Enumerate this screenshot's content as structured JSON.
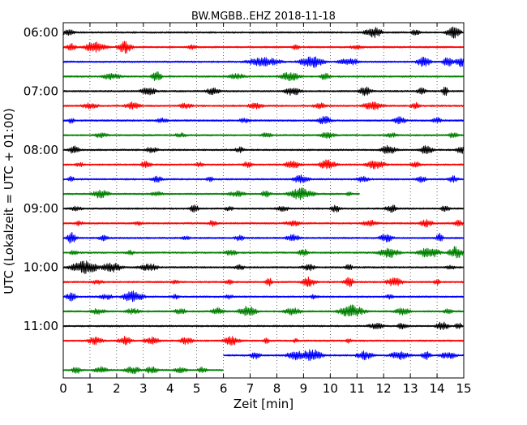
{
  "chart_data": {
    "type": "line",
    "title": "BW.MGBB..EHZ 2018-11-18",
    "xlabel": "Zeit  [min]",
    "ylabel": "UTC (Lokalzeit = UTC + 01:00)",
    "xlim": [
      0,
      15
    ],
    "x_ticks": [
      "0",
      "1",
      "2",
      "3",
      "4",
      "5",
      "6",
      "7",
      "8",
      "9",
      "10",
      "11",
      "12",
      "13",
      "14",
      "15"
    ],
    "y_ticks": [
      {
        "label": "06:00",
        "row": 0
      },
      {
        "label": "07:00",
        "row": 4
      },
      {
        "label": "08:00",
        "row": 8
      },
      {
        "label": "09:00",
        "row": 12
      },
      {
        "label": "10:00",
        "row": 16
      },
      {
        "label": "11:00",
        "row": 20
      }
    ],
    "grid": "vertical-dotted",
    "row_interval_minutes": 15,
    "row_colors": [
      "#000000",
      "#ff0000",
      "#0000ff",
      "#008000"
    ],
    "rows": [
      {
        "trace_start": 0,
        "trace_end": 15,
        "bursts": [
          [
            0.2,
            0.4,
            0.5
          ],
          [
            11.6,
            0.5,
            0.9
          ],
          [
            13.2,
            0.3,
            0.5
          ],
          [
            14.6,
            0.4,
            1.0
          ]
        ]
      },
      {
        "trace_start": 0,
        "trace_end": 15,
        "bursts": [
          [
            0.3,
            0.3,
            0.6
          ],
          [
            1.2,
            0.6,
            0.9
          ],
          [
            2.3,
            0.4,
            1.0
          ],
          [
            4.8,
            0.3,
            0.4
          ],
          [
            8.7,
            0.3,
            0.4
          ],
          [
            11.0,
            0.4,
            0.4
          ]
        ]
      },
      {
        "trace_start": 0,
        "trace_end": 15,
        "bursts": [
          [
            7.5,
            1.0,
            0.7
          ],
          [
            9.3,
            0.7,
            1.0
          ],
          [
            10.7,
            0.6,
            0.6
          ],
          [
            13.5,
            0.4,
            0.8
          ],
          [
            14.4,
            0.3,
            0.8
          ],
          [
            15.0,
            0.5,
            0.9
          ]
        ]
      },
      {
        "trace_start": 0,
        "trace_end": 15,
        "bursts": [
          [
            1.8,
            0.6,
            0.5
          ],
          [
            3.5,
            0.3,
            0.8
          ],
          [
            6.5,
            0.5,
            0.5
          ],
          [
            8.5,
            0.6,
            0.7
          ],
          [
            9.8,
            0.3,
            0.6
          ]
        ]
      },
      {
        "trace_start": 0,
        "trace_end": 15,
        "bursts": [
          [
            3.2,
            0.5,
            0.6
          ],
          [
            5.6,
            0.4,
            0.6
          ],
          [
            8.6,
            0.5,
            0.7
          ],
          [
            11.3,
            0.4,
            0.7
          ],
          [
            13.4,
            0.3,
            0.6
          ],
          [
            14.3,
            0.2,
            0.8
          ]
        ]
      },
      {
        "trace_start": 0,
        "trace_end": 15,
        "bursts": [
          [
            1.0,
            0.5,
            0.5
          ],
          [
            2.6,
            0.5,
            0.6
          ],
          [
            4.6,
            0.4,
            0.5
          ],
          [
            7.2,
            0.5,
            0.5
          ],
          [
            9.6,
            0.4,
            0.5
          ],
          [
            11.6,
            0.6,
            0.7
          ],
          [
            13.2,
            0.3,
            0.6
          ]
        ]
      },
      {
        "trace_start": 0,
        "trace_end": 15,
        "bursts": [
          [
            0.3,
            0.2,
            0.5
          ],
          [
            3.7,
            0.4,
            0.4
          ],
          [
            6.8,
            0.4,
            0.4
          ],
          [
            9.8,
            0.4,
            0.7
          ],
          [
            12.6,
            0.4,
            0.6
          ],
          [
            14.0,
            0.3,
            0.5
          ]
        ]
      },
      {
        "trace_start": 0,
        "trace_end": 15,
        "bursts": [
          [
            1.4,
            0.5,
            0.4
          ],
          [
            4.4,
            0.4,
            0.4
          ],
          [
            7.6,
            0.4,
            0.4
          ],
          [
            9.9,
            0.5,
            0.5
          ],
          [
            12.3,
            0.4,
            0.4
          ],
          [
            14.6,
            0.3,
            0.5
          ]
        ]
      },
      {
        "trace_start": 0,
        "trace_end": 15,
        "bursts": [
          [
            0.4,
            0.3,
            0.8
          ],
          [
            3.3,
            0.4,
            0.5
          ],
          [
            6.6,
            0.3,
            0.5
          ],
          [
            12.2,
            0.5,
            0.7
          ],
          [
            13.6,
            0.4,
            0.7
          ],
          [
            14.9,
            0.3,
            0.6
          ]
        ]
      },
      {
        "trace_start": 0,
        "trace_end": 15,
        "bursts": [
          [
            0.6,
            0.3,
            0.4
          ],
          [
            3.1,
            0.3,
            0.7
          ],
          [
            5.1,
            0.3,
            0.4
          ],
          [
            6.9,
            0.3,
            0.5
          ],
          [
            8.6,
            0.5,
            0.6
          ],
          [
            9.9,
            0.5,
            0.8
          ],
          [
            11.7,
            0.6,
            0.7
          ],
          [
            13.2,
            0.3,
            0.5
          ]
        ]
      },
      {
        "trace_start": 0,
        "trace_end": 15,
        "bursts": [
          [
            0.3,
            0.2,
            0.5
          ],
          [
            3.5,
            0.4,
            0.5
          ],
          [
            5.5,
            0.3,
            0.4
          ],
          [
            8.9,
            0.5,
            0.7
          ],
          [
            11.2,
            0.4,
            0.5
          ],
          [
            13.4,
            0.3,
            0.6
          ],
          [
            14.6,
            0.3,
            0.6
          ]
        ]
      },
      {
        "trace_start": 0,
        "trace_end": 11.1,
        "bursts": [
          [
            1.4,
            0.5,
            0.7
          ],
          [
            3.5,
            0.4,
            0.4
          ],
          [
            6.5,
            0.5,
            0.5
          ],
          [
            7.6,
            0.3,
            0.6
          ],
          [
            8.9,
            0.7,
            1.0
          ],
          [
            10.7,
            0.2,
            0.4
          ]
        ]
      },
      {
        "trace_start": 0,
        "trace_end": 15,
        "bursts": [
          [
            0.5,
            0.4,
            0.4
          ],
          [
            4.9,
            0.3,
            0.6
          ],
          [
            6.2,
            0.3,
            0.4
          ],
          [
            8.2,
            0.4,
            0.5
          ],
          [
            10.2,
            0.3,
            0.6
          ],
          [
            12.3,
            0.4,
            0.6
          ],
          [
            14.3,
            0.3,
            0.5
          ]
        ]
      },
      {
        "trace_start": 0,
        "trace_end": 15,
        "bursts": [
          [
            0.6,
            0.3,
            0.4
          ],
          [
            2.8,
            0.3,
            0.4
          ],
          [
            5.6,
            0.3,
            0.5
          ],
          [
            8.6,
            0.5,
            0.5
          ],
          [
            11.5,
            0.5,
            0.5
          ],
          [
            13.6,
            0.4,
            0.6
          ],
          [
            14.8,
            0.3,
            0.5
          ]
        ]
      },
      {
        "trace_start": 0,
        "trace_end": 15,
        "bursts": [
          [
            0.3,
            0.3,
            0.9
          ],
          [
            1.5,
            0.3,
            0.5
          ],
          [
            4.6,
            0.3,
            0.4
          ],
          [
            6.6,
            0.3,
            0.5
          ],
          [
            8.6,
            0.4,
            0.6
          ],
          [
            12.1,
            0.4,
            0.7
          ],
          [
            14.1,
            0.2,
            0.8
          ]
        ]
      },
      {
        "trace_start": 0,
        "trace_end": 15,
        "bursts": [
          [
            0.4,
            0.3,
            0.4
          ],
          [
            2.5,
            0.3,
            0.4
          ],
          [
            6.3,
            0.4,
            0.5
          ],
          [
            9.0,
            0.3,
            0.6
          ],
          [
            12.2,
            0.6,
            0.8
          ],
          [
            13.7,
            0.6,
            0.9
          ],
          [
            14.7,
            0.4,
            1.0
          ]
        ]
      },
      {
        "trace_start": 0,
        "trace_end": 15,
        "bursts": [
          [
            0.8,
            0.8,
            1.0
          ],
          [
            1.8,
            0.6,
            0.8
          ],
          [
            3.2,
            0.6,
            0.6
          ],
          [
            6.6,
            0.3,
            0.5
          ],
          [
            9.2,
            0.4,
            0.6
          ],
          [
            10.7,
            0.2,
            0.6
          ],
          [
            14.5,
            0.3,
            0.4
          ]
        ]
      },
      {
        "trace_start": 0,
        "trace_end": 15,
        "bursts": [
          [
            1.3,
            0.4,
            0.4
          ],
          [
            4.2,
            0.3,
            0.4
          ],
          [
            6.2,
            0.3,
            0.4
          ],
          [
            7.7,
            0.2,
            0.7
          ],
          [
            9.2,
            0.4,
            0.8
          ],
          [
            10.7,
            0.3,
            0.8
          ],
          [
            12.4,
            0.5,
            0.7
          ],
          [
            14.0,
            0.2,
            0.5
          ]
        ]
      },
      {
        "trace_start": 0,
        "trace_end": 15,
        "bursts": [
          [
            0.3,
            0.3,
            0.7
          ],
          [
            1.6,
            0.4,
            0.5
          ],
          [
            2.6,
            0.6,
            0.9
          ],
          [
            4.2,
            0.3,
            0.4
          ],
          [
            6.2,
            0.3,
            0.4
          ],
          [
            9.4,
            0.3,
            0.4
          ],
          [
            12.2,
            0.3,
            0.4
          ]
        ]
      },
      {
        "trace_start": 0,
        "trace_end": 15,
        "bursts": [
          [
            1.3,
            0.5,
            0.5
          ],
          [
            2.6,
            0.5,
            0.5
          ],
          [
            4.4,
            0.4,
            0.5
          ],
          [
            5.8,
            0.4,
            0.6
          ],
          [
            6.9,
            0.5,
            0.9
          ],
          [
            8.6,
            0.5,
            0.6
          ],
          [
            10.8,
            0.7,
            1.0
          ],
          [
            12.7,
            0.5,
            0.6
          ],
          [
            14.4,
            0.3,
            0.5
          ]
        ]
      },
      {
        "trace_start": 0,
        "trace_end": 15,
        "bursts": [
          [
            11.7,
            0.5,
            0.5
          ],
          [
            12.7,
            0.3,
            0.6
          ],
          [
            14.2,
            0.4,
            0.7
          ],
          [
            14.8,
            0.2,
            0.6
          ]
        ]
      },
      {
        "trace_start": 0,
        "trace_end": 15,
        "bursts": [
          [
            1.2,
            0.5,
            0.6
          ],
          [
            2.3,
            0.4,
            0.7
          ],
          [
            3.3,
            0.5,
            0.6
          ],
          [
            4.6,
            0.4,
            0.6
          ],
          [
            6.3,
            0.5,
            0.7
          ],
          [
            7.6,
            0.2,
            0.5
          ],
          [
            8.7,
            0.2,
            0.4
          ],
          [
            10.7,
            0.2,
            0.4
          ]
        ]
      },
      {
        "trace_start": 6.0,
        "trace_end": 15,
        "bursts": [
          [
            7.2,
            0.3,
            0.6
          ],
          [
            8.7,
            0.5,
            0.8
          ],
          [
            9.3,
            0.6,
            1.0
          ],
          [
            11.3,
            0.5,
            0.7
          ],
          [
            12.6,
            0.6,
            0.7
          ],
          [
            13.6,
            0.3,
            0.7
          ],
          [
            14.4,
            0.5,
            0.6
          ]
        ]
      },
      {
        "trace_start": 0,
        "trace_end": 6.0,
        "bursts": [
          [
            0.5,
            0.3,
            0.6
          ],
          [
            1.4,
            0.4,
            0.6
          ],
          [
            2.6,
            0.5,
            0.6
          ],
          [
            3.3,
            0.4,
            0.6
          ],
          [
            4.4,
            0.4,
            0.5
          ],
          [
            5.2,
            0.3,
            0.5
          ]
        ]
      }
    ]
  }
}
